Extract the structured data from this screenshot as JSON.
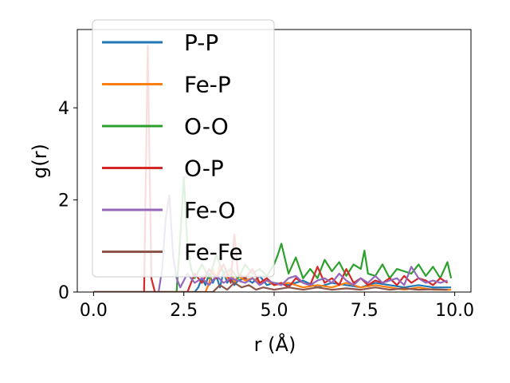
{
  "chart_data": {
    "type": "line",
    "xlabel": "r (Å)",
    "ylabel": "g(r)",
    "xlim": [
      -0.45,
      10.45
    ],
    "ylim": [
      0,
      5.7
    ],
    "xticks": [
      0.0,
      2.5,
      5.0,
      7.5,
      10.0
    ],
    "xtick_labels": [
      "0.0",
      "2.5",
      "5.0",
      "7.5",
      "10.0"
    ],
    "yticks": [
      0,
      2,
      4
    ],
    "ytick_labels": [
      "0",
      "2",
      "4"
    ],
    "grid": false,
    "legend_position": "upper-left",
    "series": [
      {
        "name": "P-P",
        "color": "#1f77b4",
        "x": [
          0,
          2.8,
          2.9,
          3.0,
          3.1,
          3.2,
          3.3,
          3.4,
          3.5,
          3.6,
          3.7,
          3.8,
          3.9,
          4.0,
          4.2,
          4.4,
          4.6,
          4.8,
          5.0,
          5.4,
          5.8,
          6.2,
          6.6,
          7.0,
          7.4,
          7.8,
          8.2,
          8.6,
          9.0,
          9.4,
          9.9
        ],
        "y": [
          0,
          0,
          0.1,
          0.3,
          0.15,
          0.4,
          0.2,
          0.35,
          0.1,
          0.45,
          0.2,
          0.3,
          0.15,
          0.25,
          0.3,
          0.2,
          0.35,
          0.15,
          0.2,
          0.15,
          0.25,
          0.1,
          0.2,
          0.15,
          0.1,
          0.2,
          0.15,
          0.1,
          0.15,
          0.1,
          0.1
        ]
      },
      {
        "name": "Fe-P",
        "color": "#ff7f0e",
        "x": [
          0,
          3.1,
          3.2,
          3.3,
          3.4,
          3.5,
          3.6,
          3.7,
          3.8,
          3.9,
          4.0,
          4.2,
          4.4,
          4.6,
          4.8,
          5.0,
          5.4,
          5.8,
          6.2,
          6.6,
          7.0,
          7.4,
          7.8,
          8.2,
          8.6,
          9.0,
          9.4,
          9.9
        ],
        "y": [
          0,
          0,
          0.2,
          0.5,
          0.3,
          0.6,
          0.4,
          0.3,
          0.5,
          0.2,
          0.35,
          0.25,
          0.3,
          0.2,
          0.25,
          0.15,
          0.2,
          0.1,
          0.15,
          0.1,
          0.2,
          0.1,
          0.15,
          0.1,
          0.05,
          0.1,
          0.05,
          0.05
        ]
      },
      {
        "name": "O-O",
        "color": "#2ca02c",
        "x": [
          0,
          2.3,
          2.4,
          2.5,
          2.6,
          2.7,
          2.8,
          3.0,
          3.2,
          3.4,
          3.6,
          3.8,
          4.0,
          4.2,
          4.4,
          4.6,
          4.8,
          5.0,
          5.1,
          5.2,
          5.4,
          5.6,
          5.8,
          6.0,
          6.2,
          6.4,
          6.6,
          6.8,
          7.0,
          7.2,
          7.4,
          7.5,
          7.6,
          7.8,
          8.0,
          8.2,
          8.4,
          8.6,
          8.8,
          9.0,
          9.2,
          9.4,
          9.6,
          9.8,
          9.9
        ],
        "y": [
          0,
          0,
          1.2,
          2.5,
          1.0,
          0.5,
          0.3,
          0.6,
          0.3,
          0.8,
          0.4,
          0.5,
          0.3,
          0.6,
          0.4,
          0.5,
          0.35,
          0.6,
          0.8,
          1.05,
          0.4,
          0.75,
          0.3,
          0.5,
          0.3,
          0.7,
          0.45,
          0.65,
          0.35,
          0.6,
          0.5,
          0.9,
          0.4,
          0.35,
          0.6,
          0.3,
          0.5,
          0.45,
          0.4,
          0.6,
          0.35,
          0.55,
          0.3,
          0.65,
          0.3
        ]
      },
      {
        "name": "O-P",
        "color": "#d62728",
        "x": [
          0,
          1.4,
          1.5,
          1.6,
          1.7,
          2.6,
          2.8,
          3.0,
          3.2,
          3.4,
          3.6,
          3.8,
          3.9,
          4.0,
          4.2,
          4.4,
          4.6,
          4.8,
          5.0,
          5.2,
          5.4,
          5.6,
          5.8,
          6.0,
          6.2,
          6.4,
          6.6,
          6.8,
          7.0,
          7.2,
          7.4,
          7.6,
          7.8,
          8.0,
          8.2,
          8.4,
          8.6,
          8.8,
          9.0,
          9.2,
          9.4,
          9.6,
          9.8
        ],
        "y": [
          0,
          0,
          5.35,
          0.3,
          0,
          0,
          0.4,
          0.2,
          0.5,
          0.3,
          0.6,
          0.2,
          1.25,
          0.4,
          0.3,
          0.5,
          0.2,
          0.3,
          0.15,
          0.2,
          0.1,
          0.3,
          0.2,
          0.15,
          0.55,
          0.2,
          0.3,
          0.15,
          0.5,
          0.2,
          0.3,
          0.15,
          0.25,
          0.2,
          0.3,
          0.15,
          0.35,
          0.2,
          0.3,
          0.25,
          0.15,
          0.3,
          0.2
        ]
      },
      {
        "name": "Fe-O",
        "color": "#9467bd",
        "x": [
          0,
          1.8,
          1.9,
          2.0,
          2.1,
          2.2,
          2.3,
          2.4,
          2.6,
          2.8,
          3.0,
          3.2,
          3.4,
          3.6,
          3.8,
          4.0,
          4.2,
          4.4,
          4.6,
          4.8,
          5.0,
          5.2,
          5.4,
          5.6,
          5.8,
          6.0,
          6.2,
          6.4,
          6.6,
          6.8,
          7.0,
          7.2,
          7.4,
          7.6,
          7.8,
          8.0,
          8.2,
          8.4,
          8.6,
          8.8,
          9.0,
          9.2,
          9.4,
          9.6,
          9.8
        ],
        "y": [
          0,
          0,
          0.5,
          1.6,
          2.1,
          0.8,
          0.3,
          0.1,
          0.4,
          0.2,
          0.3,
          0.15,
          0.35,
          0.2,
          0.3,
          0.25,
          0.2,
          0.3,
          0.15,
          0.25,
          0.2,
          0.15,
          0.3,
          0.35,
          0.2,
          0.15,
          0.25,
          0.3,
          0.2,
          0.4,
          0.25,
          0.15,
          0.3,
          0.2,
          0.35,
          0.2,
          0.25,
          0.3,
          0.15,
          0.55,
          0.3,
          0.2,
          0.25,
          0.2,
          0.25
        ]
      },
      {
        "name": "Fe-Fe",
        "color": "#8c564b",
        "x": [
          0,
          3.3,
          3.5,
          3.7,
          3.9,
          4.1,
          4.3,
          4.5,
          4.7,
          5.0,
          5.4,
          5.8,
          6.2,
          6.6,
          7.0,
          7.4,
          7.8,
          8.2,
          8.6,
          9.0,
          9.4,
          9.8
        ],
        "y": [
          0,
          0,
          0.15,
          0.05,
          0.2,
          0.1,
          0.15,
          0.05,
          0.1,
          0.05,
          0.1,
          0.05,
          0.1,
          0.05,
          0.08,
          0.05,
          0.1,
          0.05,
          0.08,
          0.05,
          0.06,
          0.05
        ]
      }
    ]
  }
}
